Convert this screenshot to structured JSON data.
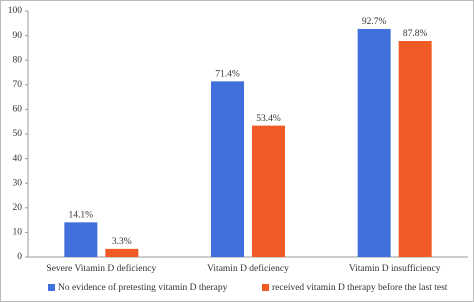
{
  "chart_data": {
    "type": "bar",
    "categories": [
      "Severe Vitamin D deficiency",
      "Vitamin D deficiency",
      "Vitamin D insufficiency"
    ],
    "series": [
      {
        "name": "No evidence of pretesting vitamin D therapy",
        "color": "#4170dc",
        "values": [
          14.1,
          71.4,
          92.7
        ],
        "value_labels": [
          "14.1%",
          "71.4%",
          "92.7%"
        ]
      },
      {
        "name": "received vitamin D therapy before the last test",
        "color": "#f05a24",
        "values": [
          3.3,
          53.4,
          87.8
        ],
        "value_labels": [
          "3.3%",
          "53.4%",
          "87.8%"
        ]
      }
    ],
    "ylim": [
      0,
      100
    ],
    "yticks": [
      0,
      10,
      20,
      30,
      40,
      50,
      60,
      70,
      80,
      90,
      100
    ],
    "grid": false,
    "legend": "bottom"
  }
}
